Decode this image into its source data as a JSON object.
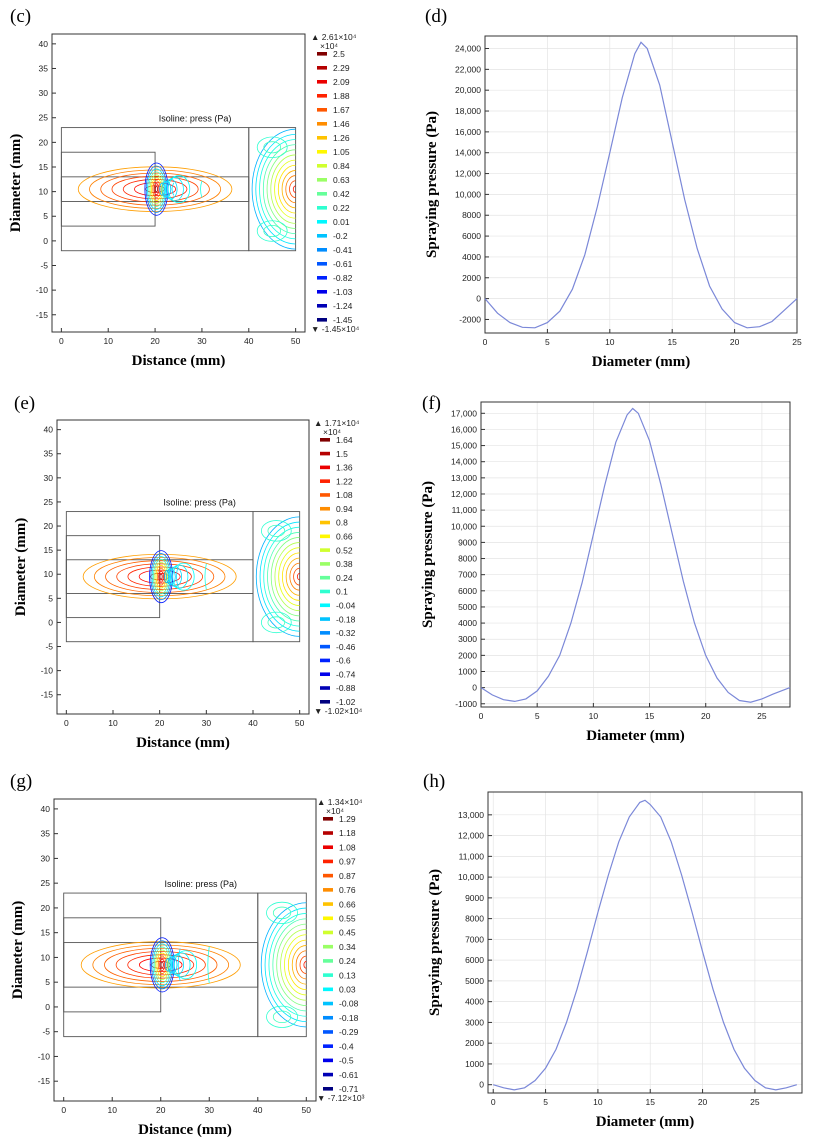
{
  "colors": {
    "line": "#7b88d8",
    "grid": "#e4e4e4",
    "frame": "#333333"
  },
  "chart_data": [
    {
      "panel": "(c)",
      "type": "contour",
      "title": "Isoline: press (Pa)",
      "xlabel": "Distance (mm)",
      "ylabel": "Diameter (mm)",
      "xlim": [
        -2,
        52
      ],
      "ylim": [
        -18.5,
        42
      ],
      "xticks": [
        "0",
        "10",
        "20",
        "30",
        "40",
        "50"
      ],
      "yticks": [
        "-15",
        "-10",
        "-5",
        "0",
        "5",
        "10",
        "15",
        "20",
        "25",
        "30",
        "35",
        "40"
      ],
      "geom": {
        "top": 23,
        "bottom": -2,
        "ch_top": 18,
        "ch_bot": 3,
        "in_top": 13,
        "in_bot": 8,
        "nozzle": 20,
        "wall": 40,
        "right": 50,
        "center": 10.5
      },
      "colorbar": {
        "max_label": "2.61×10⁴",
        "min_label": "-1.45×10⁴",
        "scale": "×10⁴",
        "labels": [
          "2.5",
          "2.29",
          "2.09",
          "1.88",
          "1.67",
          "1.46",
          "1.26",
          "1.05",
          "0.84",
          "0.63",
          "0.42",
          "0.22",
          "0.01",
          "-0.2",
          "-0.41",
          "-0.61",
          "-0.82",
          "-1.03",
          "-1.24",
          "-1.45"
        ]
      }
    },
    {
      "panel": "(d)",
      "type": "line",
      "xlabel": "Diameter (mm)",
      "ylabel": "Spraying pressure (Pa)",
      "xlim": [
        0,
        25
      ],
      "ylim": [
        -3300,
        25200
      ],
      "xticks": [
        0,
        5,
        10,
        15,
        20,
        25
      ],
      "xtick_labels": [
        "0",
        "5",
        "10",
        "15",
        "20",
        "25"
      ],
      "yticks": [
        -2000,
        0,
        2000,
        4000,
        6000,
        8000,
        10000,
        12000,
        14000,
        16000,
        18000,
        20000,
        22000,
        24000
      ],
      "ytick_labels": [
        "-2000",
        "0",
        "2000",
        "4000",
        "6000",
        "8000",
        "10,000",
        "12,000",
        "14,000",
        "16,000",
        "18,000",
        "20,000",
        "22,000",
        "24,000"
      ],
      "x": [
        0,
        1,
        2,
        3,
        4,
        5,
        6,
        7,
        8,
        9,
        10,
        11,
        12,
        12.5,
        13,
        14,
        15,
        16,
        17,
        18,
        19,
        20,
        21,
        22,
        23,
        24,
        25
      ],
      "y": [
        0,
        -1400,
        -2300,
        -2750,
        -2800,
        -2300,
        -1200,
        900,
        4200,
        8800,
        14000,
        19300,
        23500,
        24600,
        24000,
        20500,
        15000,
        9500,
        4800,
        1200,
        -1000,
        -2300,
        -2800,
        -2700,
        -2200,
        -1100,
        0
      ]
    },
    {
      "panel": "(e)",
      "type": "contour",
      "title": "Isoline: press (Pa)",
      "xlabel": "Distance (mm)",
      "ylabel": "Diameter (mm)",
      "xlim": [
        -2,
        52
      ],
      "ylim": [
        -19,
        42
      ],
      "xticks": [
        "0",
        "10",
        "20",
        "30",
        "40",
        "50"
      ],
      "yticks": [
        "-15",
        "-10",
        "-5",
        "0",
        "5",
        "10",
        "15",
        "20",
        "25",
        "30",
        "35",
        "40"
      ],
      "geom": {
        "top": 23,
        "bottom": -4,
        "ch_top": 18,
        "ch_bot": 1,
        "in_top": 13,
        "in_bot": 6,
        "nozzle": 20,
        "wall": 40,
        "right": 50,
        "center": 9.5
      },
      "colorbar": {
        "max_label": "1.71×10⁴",
        "min_label": "-1.02×10⁴",
        "scale": "×10⁴",
        "labels": [
          "1.64",
          "1.5",
          "1.36",
          "1.22",
          "1.08",
          "0.94",
          "0.8",
          "0.66",
          "0.52",
          "0.38",
          "0.24",
          "0.1",
          "-0.04",
          "-0.18",
          "-0.32",
          "-0.46",
          "-0.6",
          "-0.74",
          "-0.88",
          "-1.02"
        ]
      }
    },
    {
      "panel": "(f)",
      "type": "line",
      "xlabel": "Diameter (mm)",
      "ylabel": "Spraying pressure (Pa)",
      "xlim": [
        0,
        27.5
      ],
      "ylim": [
        -1200,
        17700
      ],
      "xticks": [
        0,
        5,
        10,
        15,
        20,
        25
      ],
      "xtick_labels": [
        "0",
        "5",
        "10",
        "15",
        "20",
        "25"
      ],
      "yticks": [
        -1000,
        0,
        1000,
        2000,
        3000,
        4000,
        5000,
        6000,
        7000,
        8000,
        9000,
        10000,
        11000,
        12000,
        13000,
        14000,
        15000,
        16000,
        17000
      ],
      "ytick_labels": [
        "-1000",
        "0",
        "1000",
        "2000",
        "3000",
        "4000",
        "5000",
        "6000",
        "7000",
        "8000",
        "9000",
        "10,000",
        "11,000",
        "12,000",
        "13,000",
        "14,000",
        "15,000",
        "16,000",
        "17,000"
      ],
      "x": [
        0,
        1,
        2,
        3,
        4,
        5,
        6,
        7,
        8,
        9,
        10,
        11,
        12,
        13,
        13.5,
        14,
        15,
        16,
        17,
        18,
        19,
        20,
        21,
        22,
        23,
        24,
        25,
        26,
        27.5
      ],
      "y": [
        0,
        -450,
        -750,
        -850,
        -700,
        -200,
        700,
        2000,
        4000,
        6500,
        9500,
        12500,
        15200,
        16900,
        17300,
        17000,
        15300,
        12600,
        9600,
        6600,
        4000,
        2000,
        600,
        -300,
        -800,
        -900,
        -700,
        -400,
        0
      ]
    },
    {
      "panel": "(g)",
      "type": "contour",
      "title": "Isoline: press (Pa)",
      "xlabel": "Distance (mm)",
      "ylabel": "Diameter (mm)",
      "xlim": [
        -2,
        52
      ],
      "ylim": [
        -19,
        42
      ],
      "xticks": [
        "0",
        "10",
        "20",
        "30",
        "40",
        "50"
      ],
      "yticks": [
        "-15",
        "-10",
        "-5",
        "0",
        "5",
        "10",
        "15",
        "20",
        "25",
        "30",
        "35",
        "40"
      ],
      "geom": {
        "top": 23,
        "bottom": -6,
        "ch_top": 18,
        "ch_bot": -1,
        "in_top": 13,
        "in_bot": 4,
        "nozzle": 20,
        "wall": 40,
        "right": 50,
        "center": 8.5
      },
      "colorbar": {
        "max_label": "1.34×10⁴",
        "min_label": "-7.12×10³",
        "scale": "×10⁴",
        "labels": [
          "1.29",
          "1.18",
          "1.08",
          "0.97",
          "0.87",
          "0.76",
          "0.66",
          "0.55",
          "0.45",
          "0.34",
          "0.24",
          "0.13",
          "0.03",
          "-0.08",
          "-0.18",
          "-0.29",
          "-0.4",
          "-0.5",
          "-0.61",
          "-0.71"
        ]
      }
    },
    {
      "panel": "(h)",
      "type": "line",
      "xlabel": "Diameter (mm)",
      "ylabel": "Spraying pressure (Pa)",
      "xlim": [
        -0.5,
        29.5
      ],
      "ylim": [
        -400,
        14100
      ],
      "xticks": [
        0,
        5,
        10,
        15,
        20,
        25
      ],
      "xtick_labels": [
        "0",
        "5",
        "10",
        "15",
        "20",
        "25"
      ],
      "yticks": [
        0,
        1000,
        2000,
        3000,
        4000,
        5000,
        6000,
        7000,
        8000,
        9000,
        10000,
        11000,
        12000,
        13000
      ],
      "ytick_labels": [
        "0",
        "1000",
        "2000",
        "3000",
        "4000",
        "5000",
        "6000",
        "7000",
        "8000",
        "9000",
        "10,000",
        "11,000",
        "12,000",
        "13,000"
      ],
      "x": [
        0,
        1,
        2,
        3,
        4,
        5,
        6,
        7,
        8,
        9,
        10,
        11,
        12,
        13,
        14,
        14.5,
        15,
        16,
        17,
        18,
        19,
        20,
        21,
        22,
        23,
        24,
        25,
        26,
        27,
        28,
        29
      ],
      "y": [
        0,
        -150,
        -250,
        -150,
        200,
        800,
        1700,
        3000,
        4600,
        6400,
        8300,
        10100,
        11700,
        12900,
        13600,
        13700,
        13500,
        12900,
        11700,
        10100,
        8300,
        6400,
        4600,
        3000,
        1700,
        800,
        200,
        -150,
        -250,
        -150,
        0
      ]
    }
  ]
}
